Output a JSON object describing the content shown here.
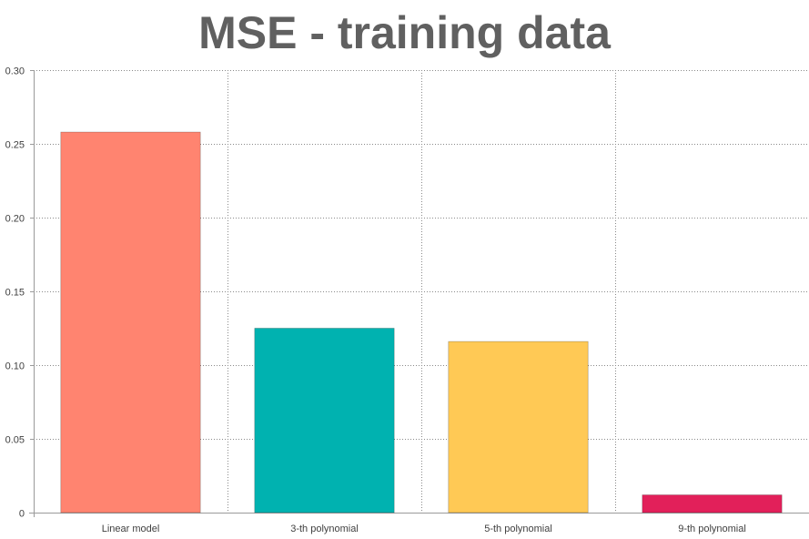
{
  "chart_data": {
    "type": "bar",
    "title": "MSE - training data",
    "xlabel": "",
    "ylabel": "",
    "categories": [
      "Linear model",
      "3-th polynomial",
      "5-th polynomial",
      "9-th polynomial"
    ],
    "values": [
      0.258,
      0.125,
      0.116,
      0.012
    ],
    "colors": [
      "#FF8470",
      "#00B2B0",
      "#FFC955",
      "#E2205A"
    ],
    "ylim": [
      0,
      0.3
    ],
    "yticks": [
      0,
      0.05,
      0.1,
      0.15,
      0.2,
      0.25,
      0.3
    ],
    "ytick_labels": [
      "0",
      "0.05",
      "0.10",
      "0.15",
      "0.20",
      "0.25",
      "0.30"
    ],
    "grid": true,
    "grid_style": "dotted",
    "legend": "none"
  }
}
